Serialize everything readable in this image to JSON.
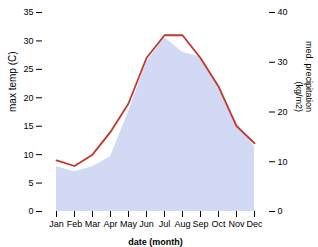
{
  "chart_data": {
    "type": "line",
    "xlabel": "date (month)",
    "ylabel": "max temp (C)",
    "y2label": "med. precipitation\n(kg/m2)",
    "categories": [
      "Jan",
      "Feb",
      "Mar",
      "Apr",
      "May",
      "Jun",
      "Jul",
      "Aug",
      "Sep",
      "Oct",
      "Nov",
      "Dec"
    ],
    "series": [
      {
        "type": "area",
        "axis": "y2",
        "color": "#b3bfee",
        "values": [
          9,
          8,
          9,
          11,
          20,
          30,
          35,
          32,
          31,
          25,
          18,
          13
        ]
      },
      {
        "type": "line",
        "color": "#c0392b",
        "values": [
          9,
          8,
          10,
          14,
          19,
          27,
          31,
          31,
          27,
          22,
          15,
          12
        ]
      }
    ],
    "ylim": [
      0,
      35
    ],
    "yticks": [
      0,
      5,
      10,
      15,
      20,
      25,
      30,
      35
    ],
    "y2lim": [
      0,
      40
    ],
    "y2ticks": [
      0,
      10,
      20,
      30,
      40
    ],
    "grid": false
  }
}
